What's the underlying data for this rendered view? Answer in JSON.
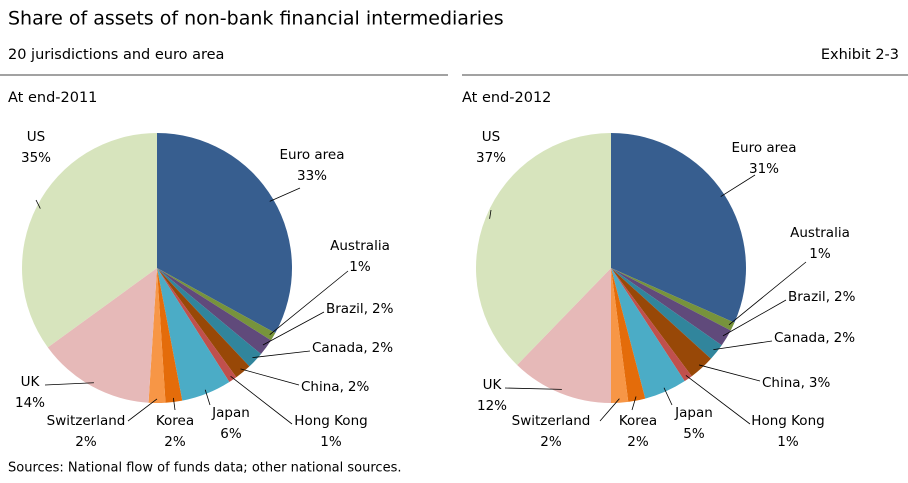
{
  "header": {
    "title": "Share of assets of non-bank financial intermediaries",
    "subtitle": "20 jurisdictions and euro area",
    "exhibit": "Exhibit 2-3"
  },
  "chart_data": [
    {
      "type": "pie",
      "title": "At end-2011",
      "categories": [
        "Euro area",
        "Australia",
        "Brazil",
        "Canada",
        "China",
        "Hong Kong",
        "Japan",
        "Korea",
        "Switzerland",
        "UK",
        "US"
      ],
      "values": [
        33,
        1,
        2,
        2,
        2,
        1,
        6,
        2,
        2,
        14,
        35
      ],
      "value_labels": [
        "33%",
        "1%",
        "2%",
        "2%",
        "2%",
        "1%",
        "6%",
        "2%",
        "2%",
        "14%",
        "35%"
      ],
      "colors": [
        "#375e8f",
        "#77933c",
        "#604a7b",
        "#31859c",
        "#984807",
        "#c0504d",
        "#4bacc6",
        "#e46c0a",
        "#f79646",
        "#e6b9b8",
        "#d7e4bd"
      ],
      "label_separator": ","
    },
    {
      "type": "pie",
      "title": "At end-2012",
      "categories": [
        "Euro area",
        "Australia",
        "Brazil",
        "Canada",
        "China",
        "Hong Kong",
        "Japan",
        "Korea",
        "Switzerland",
        "UK",
        "US"
      ],
      "values": [
        31,
        1,
        2,
        2,
        3,
        1,
        5,
        2,
        2,
        12,
        37
      ],
      "value_labels": [
        "31%",
        "1%",
        "2%",
        "2%",
        "3%",
        "1%",
        "5%",
        "2%",
        "2%",
        "12%",
        "37%"
      ],
      "colors": [
        "#375e8f",
        "#77933c",
        "#604a7b",
        "#31859c",
        "#984807",
        "#c0504d",
        "#4bacc6",
        "#e46c0a",
        "#f79646",
        "#e6b9b8",
        "#d7e4bd"
      ],
      "label_separator": ","
    }
  ],
  "footer": {
    "source": "Sources: National flow of funds data; other national sources."
  }
}
